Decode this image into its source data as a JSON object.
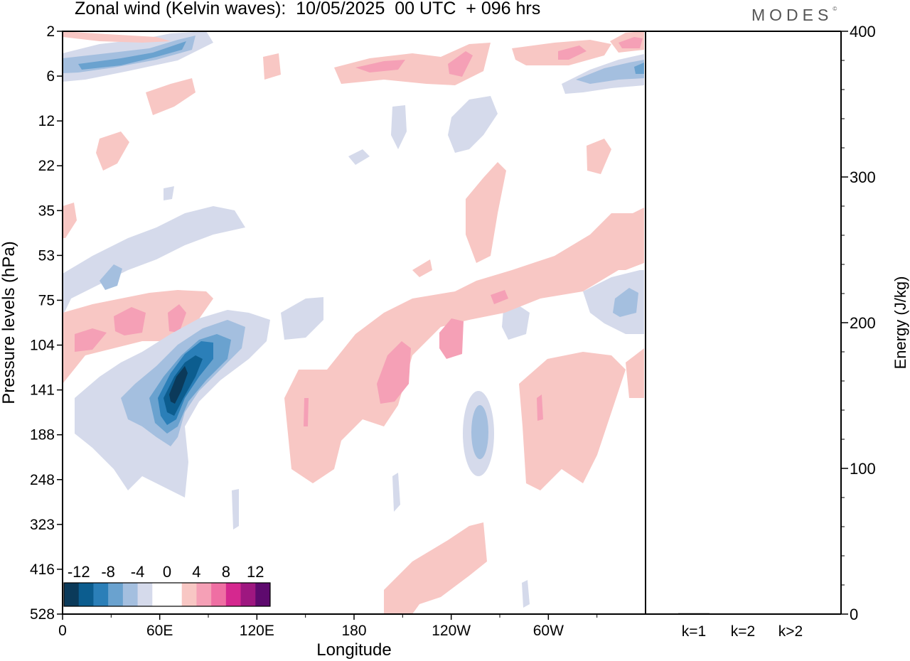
{
  "header": {
    "title": "Zonal wind (Kelvin waves):  10/05/2025  00 UTC  + 096 hrs",
    "logo": "MODES",
    "logo_mark": "©"
  },
  "chart_data": [
    {
      "type": "heatmap",
      "title": "Zonal wind (Kelvin waves):  10/05/2025  00 UTC  + 096 hrs",
      "xlabel": "Longitude",
      "ylabel": "Pressure levels (hPa)",
      "x_ticks": [
        "0",
        "60E",
        "120E",
        "180",
        "120W",
        "60W"
      ],
      "x_tick_values": [
        0,
        60,
        120,
        180,
        240,
        300
      ],
      "xlim": [
        0,
        360
      ],
      "y_ticks": [
        "2",
        "6",
        "12",
        "22",
        "35",
        "53",
        "75",
        "104",
        "141",
        "188",
        "248",
        "323",
        "416",
        "528"
      ],
      "y_axis": "pressure levels, top = 2 hPa, bottom = 528 hPa",
      "colorbar": {
        "labels": [
          "-12",
          "-8",
          "-4",
          "0",
          "4",
          "8",
          "12"
        ],
        "colors": [
          "#0b3a5a",
          "#0c5d8f",
          "#2b7fb8",
          "#6aa2cf",
          "#a4bfdf",
          "#d5daeb",
          "#ffffff",
          "#ffffff",
          "#f8c7c4",
          "#f5a0b6",
          "#ef6fa3",
          "#d5288f",
          "#9e1780",
          "#5e0a6e"
        ]
      },
      "features": [
        {
          "name": "strongest easterly core",
          "lon": 66,
          "pressure_hPa": 141,
          "value": -13
        },
        {
          "name": "westerly band",
          "lon": 20,
          "pressure_hPa": 104,
          "value": 6
        },
        {
          "name": "upper easterly band",
          "lon": 30,
          "pressure_hPa": 5,
          "value": -8
        },
        {
          "name": "westerly maximum",
          "lon": 310,
          "pressure_hPa": 4,
          "value": 9
        },
        {
          "name": "mid-level easterly",
          "lon": 256,
          "pressure_hPa": 188,
          "value": -5
        },
        {
          "name": "tilted westerly band",
          "lon": 197,
          "pressure_hPa": 141,
          "value": 6
        }
      ]
    },
    {
      "type": "bar",
      "ylabel": "Energy (J/kg)",
      "ylim": [
        0,
        400
      ],
      "y_ticks": [
        "0",
        "100",
        "200",
        "300",
        "400"
      ],
      "categories": [
        "k=1",
        "k=2",
        "k>2"
      ],
      "values": [
        0.6,
        0.4,
        0.3
      ]
    }
  ]
}
